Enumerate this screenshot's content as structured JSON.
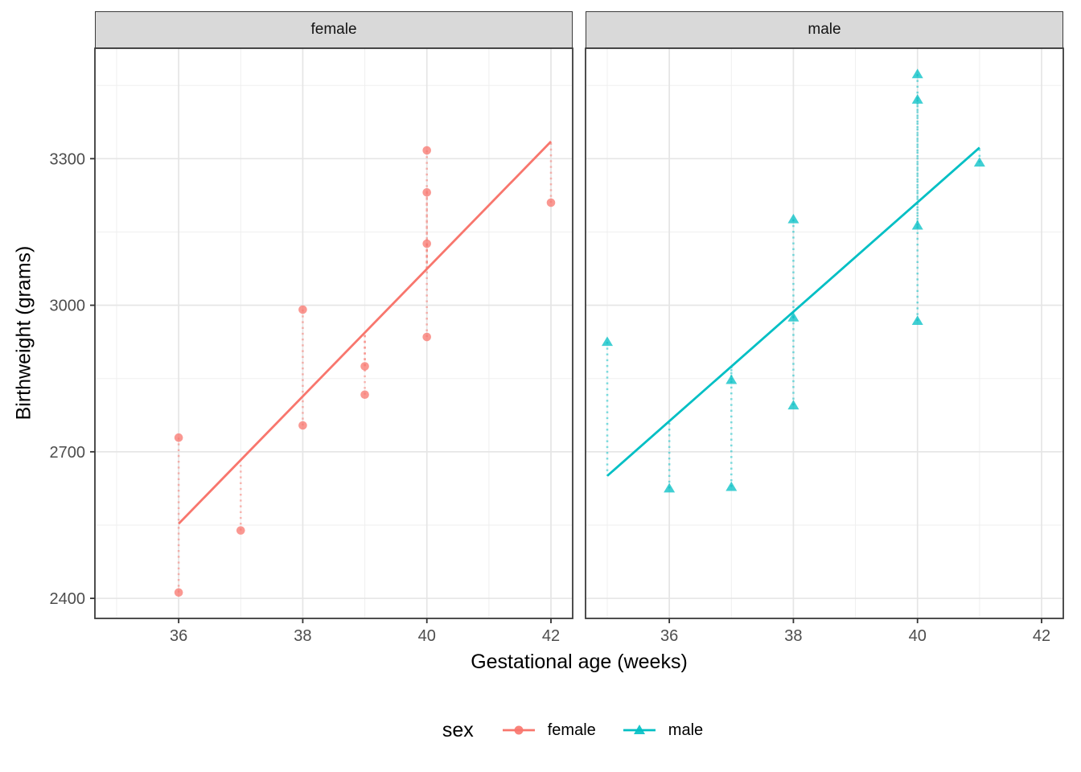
{
  "chart_data": {
    "type": "scatter",
    "title": "",
    "xlabel": "Gestational age (weeks)",
    "ylabel": "Birthweight (grams)",
    "x_range": [
      34.65,
      42.35
    ],
    "y_range": [
      2358.95,
      3526.05
    ],
    "x_major_ticks": [
      36,
      38,
      40,
      42
    ],
    "x_minor_ticks": [
      35,
      37,
      39,
      41
    ],
    "y_major_ticks": [
      2400,
      2700,
      3000,
      3300
    ],
    "y_minor_ticks": [
      2550,
      2850,
      3150,
      3450
    ],
    "grid": true,
    "legend": {
      "title": "sex",
      "position": "bottom",
      "items": [
        {
          "label": "female",
          "color": "#F8766D",
          "marker": "circle"
        },
        {
          "label": "male",
          "color": "#00BFC4",
          "marker": "triangle"
        }
      ]
    },
    "facets": [
      {
        "label": "female",
        "marker": "circle",
        "color": "#F8766D",
        "points": [
          [
            40,
            3317
          ],
          [
            36,
            2729
          ],
          [
            40,
            2935
          ],
          [
            38,
            2754
          ],
          [
            42,
            3210
          ],
          [
            39,
            2817
          ],
          [
            40,
            3126
          ],
          [
            37,
            2539
          ],
          [
            36,
            2412
          ],
          [
            38,
            2991
          ],
          [
            39,
            2875
          ],
          [
            40,
            3231
          ]
        ],
        "fit": {
          "x_start": 36,
          "x_end": 42,
          "intercept": -2141.67,
          "slope": 130.4
        },
        "residuals": true
      },
      {
        "label": "male",
        "marker": "triangle",
        "color": "#00BFC4",
        "points": [
          [
            40,
            2968
          ],
          [
            38,
            2795
          ],
          [
            40,
            3163
          ],
          [
            35,
            2925
          ],
          [
            36,
            2625
          ],
          [
            37,
            2847
          ],
          [
            41,
            3292
          ],
          [
            40,
            3473
          ],
          [
            37,
            2628
          ],
          [
            38,
            3176
          ],
          [
            40,
            3421
          ],
          [
            38,
            2975
          ]
        ],
        "fit": {
          "x_start": 35,
          "x_end": 41,
          "intercept": -1268.67,
          "slope": 111.983
        },
        "residuals": true
      }
    ]
  }
}
